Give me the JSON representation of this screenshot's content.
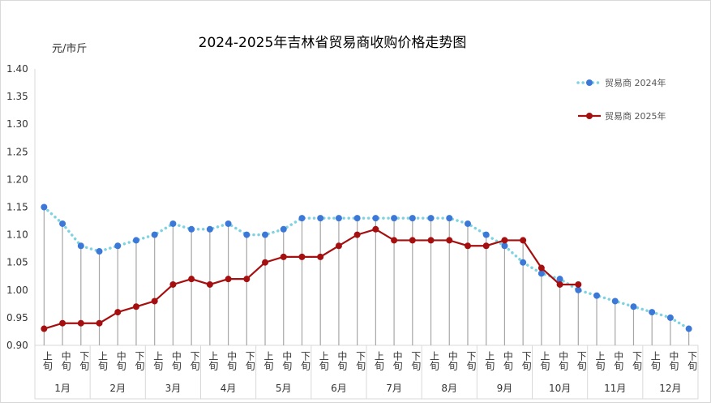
{
  "chart_data": {
    "type": "line",
    "title": "2024-2025年吉林省贸易商收购价格走势图",
    "ylabel": "元/市斤",
    "xlabel": "",
    "ylim": [
      0.9,
      1.4
    ],
    "yticks": [
      "0.90",
      "0.95",
      "1.00",
      "1.05",
      "1.10",
      "1.15",
      "1.20",
      "1.25",
      "1.30",
      "1.35",
      "1.40"
    ],
    "ytick_values": [
      0.9,
      0.95,
      1.0,
      1.05,
      1.1,
      1.15,
      1.2,
      1.25,
      1.3,
      1.35,
      1.4
    ],
    "subcategories": [
      "上旬",
      "中旬",
      "下旬"
    ],
    "months": [
      "1月",
      "2月",
      "3月",
      "4月",
      "5月",
      "6月",
      "7月",
      "8月",
      "9月",
      "10月",
      "11月",
      "12月"
    ],
    "legend_position": "top-right",
    "grid": false,
    "series": [
      {
        "name": "贸易商 2024年",
        "color": "#3c78d8",
        "line_color": "#7fd3e0",
        "style": "dotted",
        "values": [
          1.15,
          1.12,
          1.08,
          1.07,
          1.08,
          1.09,
          1.1,
          1.12,
          1.11,
          1.11,
          1.12,
          1.1,
          1.1,
          1.11,
          1.13,
          1.13,
          1.13,
          1.13,
          1.13,
          1.13,
          1.13,
          1.13,
          1.13,
          1.12,
          1.1,
          1.08,
          1.05,
          1.03,
          1.02,
          1.0,
          0.99,
          0.98,
          0.97,
          0.96,
          0.95,
          0.93
        ]
      },
      {
        "name": "贸易商 2025年",
        "color": "#a50f0f",
        "line_color": "#a50f0f",
        "style": "solid",
        "values": [
          0.93,
          0.94,
          0.94,
          0.94,
          0.96,
          0.97,
          0.98,
          1.01,
          1.02,
          1.01,
          1.02,
          1.02,
          1.05,
          1.06,
          1.06,
          1.06,
          1.08,
          1.1,
          1.11,
          1.09,
          1.09,
          1.09,
          1.09,
          1.08,
          1.08,
          1.09,
          1.09,
          1.04,
          1.01,
          1.01
        ]
      }
    ]
  }
}
